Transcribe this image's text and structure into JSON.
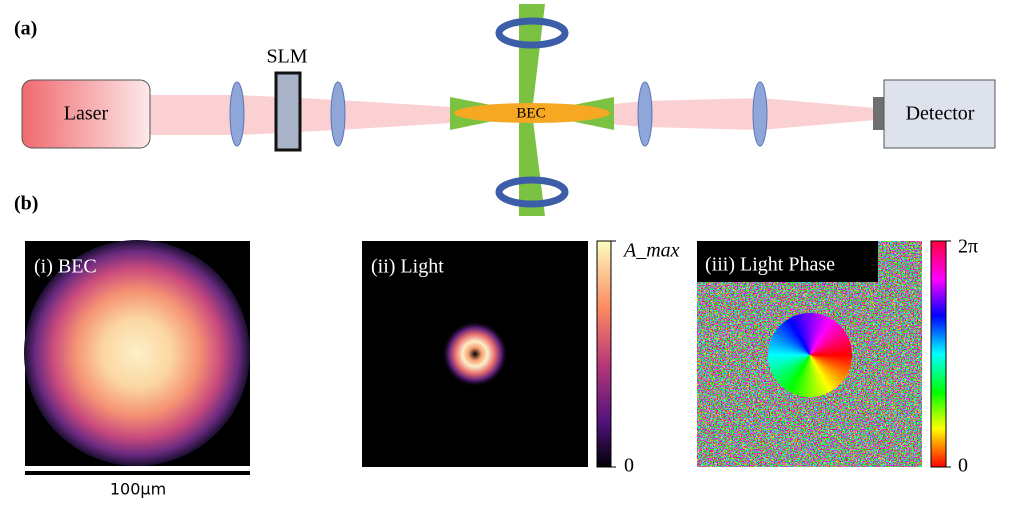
{
  "panel_a": {
    "label": "(a)",
    "laser": "Laser",
    "slm": "SLM",
    "bec": "BEC",
    "detector": "Detector"
  },
  "panel_b": {
    "label": "(b)",
    "images": [
      {
        "title": "(i) BEC"
      },
      {
        "title": "(ii) Light"
      },
      {
        "title": "(iii) Light Phase"
      }
    ],
    "colorbars": [
      {
        "max_label": "A_max",
        "min_label": "0"
      },
      {
        "max_label": "2π",
        "min_label": "0"
      }
    ],
    "scale_bar": "100μm"
  }
}
